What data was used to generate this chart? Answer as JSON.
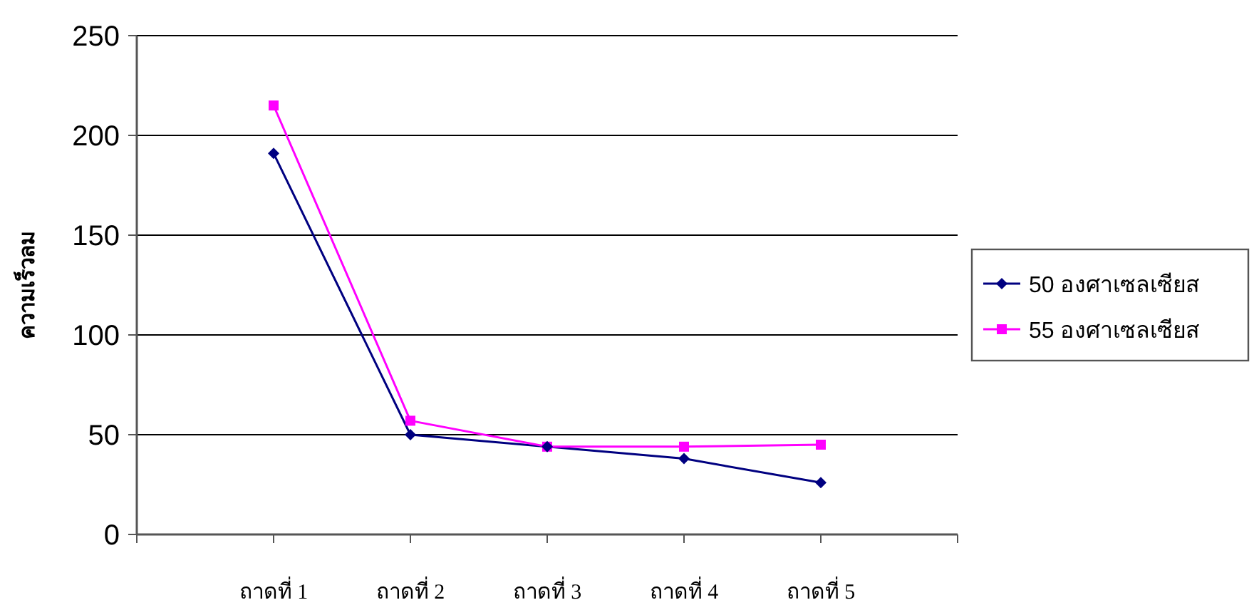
{
  "chart_data": {
    "type": "line",
    "ylabel": "ความเร็วลม",
    "categories": [
      "ถาดที่ 1",
      "ถาดที่ 2",
      "ถาดที่ 3",
      "ถาดที่ 4",
      "ถาดที่ 5"
    ],
    "series": [
      {
        "name": "50 องศาเซลเซียส",
        "color": "#000080",
        "marker": "diamond",
        "values": [
          191,
          50,
          44,
          38,
          26
        ]
      },
      {
        "name": "55 องศาเซลเซียส",
        "color": "#ff00ff",
        "marker": "square",
        "values": [
          215,
          57,
          44,
          44,
          45
        ]
      }
    ],
    "ylim": [
      0,
      250
    ],
    "yticks": [
      0,
      50,
      100,
      150,
      200,
      250
    ],
    "grid": "y",
    "legend": "right"
  }
}
